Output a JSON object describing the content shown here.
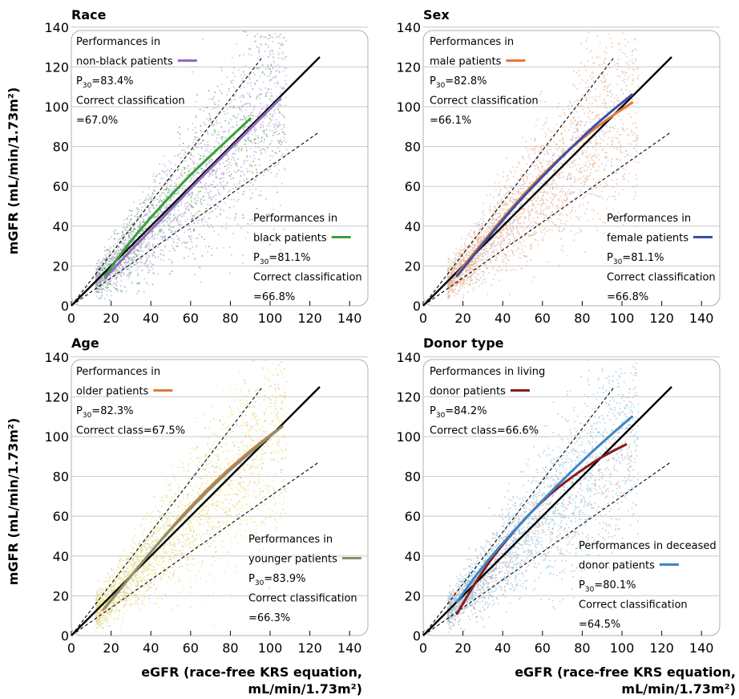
{
  "figure": {
    "ylabel": "mGFR (mL/min/1.73m²)",
    "xlabel_line1": "eGFR (race-free KRS equation,",
    "xlabel_line2": "mL/min/1.73m²)"
  },
  "chart_data": [
    {
      "type": "scatter",
      "title": "Race",
      "xlim": [
        0,
        140
      ],
      "ylim": [
        0,
        140
      ],
      "xticks": [
        0,
        20,
        40,
        60,
        80,
        100,
        120,
        140
      ],
      "yticks": [
        0,
        20,
        40,
        60,
        80,
        100,
        120,
        140
      ],
      "grid": "horizontal",
      "reference_lines": [
        "identity",
        "±30%"
      ],
      "scatter_colors": [
        "#b9a8d8",
        "#4caf50"
      ],
      "series": [
        {
          "group": "non-black patients",
          "color": "#8e6bbf",
          "x": [
            17,
            30,
            45,
            60,
            75,
            90,
            105
          ],
          "y": [
            14,
            28,
            43,
            59,
            74,
            89,
            104
          ],
          "annotation": [
            "Performances in",
            "non-black patients",
            "P30=83.4%",
            "Correct classification",
            "=67.0%"
          ],
          "p30": "83.4%",
          "correct_classification": "=67.0%"
        },
        {
          "group": "black patients",
          "color": "#3aa13a",
          "x": [
            17,
            30,
            45,
            60,
            75,
            90
          ],
          "y": [
            15,
            33,
            50,
            66,
            80,
            94
          ],
          "annotation": [
            "Performances in",
            "black patients",
            "P30=81.1%",
            "Correct classification",
            "=66.8%"
          ],
          "p30": "81.1%",
          "correct_classification": "=66.8%"
        }
      ]
    },
    {
      "type": "scatter",
      "title": "Sex",
      "xlim": [
        0,
        140
      ],
      "ylim": [
        0,
        140
      ],
      "xticks": [
        0,
        20,
        40,
        60,
        80,
        100,
        120,
        140
      ],
      "yticks": [
        0,
        20,
        40,
        60,
        80,
        100,
        120,
        140
      ],
      "grid": "horizontal",
      "reference_lines": [
        "identity",
        "±30%"
      ],
      "scatter_colors": [
        "#f2b48a",
        "#a8bde6"
      ],
      "series": [
        {
          "group": "male patients",
          "color": "#e07b3a",
          "x": [
            17,
            30,
            45,
            60,
            75,
            90,
            105
          ],
          "y": [
            16,
            32,
            50,
            66,
            80,
            92,
            102
          ],
          "annotation": [
            "Performances in",
            "male patients",
            "P30=82.8%",
            "Correct classification",
            "=66.1%"
          ],
          "p30": "82.8%",
          "correct_classification": "=66.1%"
        },
        {
          "group": "female patients",
          "color": "#3a4ea8",
          "x": [
            17,
            30,
            45,
            60,
            75,
            90,
            105
          ],
          "y": [
            15,
            31,
            49,
            65,
            80,
            94,
            106
          ],
          "annotation": [
            "Performances in",
            "female patients",
            "P30=81.1%",
            "Correct classification",
            "=66.8%"
          ],
          "p30": "81.1%",
          "correct_classification": "=66.8%"
        }
      ]
    },
    {
      "type": "scatter",
      "title": "Age",
      "xlim": [
        0,
        140
      ],
      "ylim": [
        0,
        140
      ],
      "xticks": [
        0,
        20,
        40,
        60,
        80,
        100,
        120,
        140
      ],
      "yticks": [
        0,
        20,
        40,
        60,
        80,
        100,
        120,
        140
      ],
      "grid": "horizontal",
      "reference_lines": [
        "identity",
        "±30%"
      ],
      "scatter_colors": [
        "#eee68a",
        "#c8c0b0"
      ],
      "series": [
        {
          "group": "older patients",
          "color": "#e07b3a",
          "x": [
            16,
            30,
            45,
            60,
            75,
            90,
            103
          ],
          "y": [
            13,
            30,
            48,
            65,
            80,
            93,
            103
          ],
          "annotation": [
            "Performances in",
            "older patients",
            "P30=82.3%",
            "Correct class=67.5%"
          ],
          "p30": "82.3%",
          "correct_classification": "=67.5%"
        },
        {
          "group": "younger patients",
          "color": "#8b8f6e",
          "x": [
            17,
            30,
            45,
            60,
            75,
            90,
            106
          ],
          "y": [
            14,
            30,
            48,
            64,
            79,
            92,
            105
          ],
          "annotation": [
            "Performances in",
            "younger patients",
            "P30=83.9%",
            "Correct classification",
            "=66.3%"
          ],
          "p30": "83.9%",
          "correct_classification": "=66.3%"
        }
      ]
    },
    {
      "type": "scatter",
      "title": "Donor type",
      "xlim": [
        0,
        140
      ],
      "ylim": [
        0,
        140
      ],
      "xticks": [
        0,
        20,
        40,
        60,
        80,
        100,
        120,
        140
      ],
      "yticks": [
        0,
        20,
        40,
        60,
        80,
        100,
        120,
        140
      ],
      "grid": "horizontal",
      "reference_lines": [
        "identity",
        "±30%"
      ],
      "scatter_colors": [
        "#8fc8e8",
        "#f0a080"
      ],
      "series": [
        {
          "group": "living donor patients",
          "color": "#8b1a1a",
          "x": [
            17,
            30,
            45,
            60,
            75,
            90,
            102
          ],
          "y": [
            11,
            33,
            52,
            68,
            80,
            90,
            96
          ],
          "annotation": [
            "Performances in living",
            "donor patients",
            "P30=84.2%",
            "Correct class=66.6%"
          ],
          "p30": "84.2%",
          "correct_classification": "=66.6%"
        },
        {
          "group": "deceased donor patients",
          "color": "#3a86c8",
          "x": [
            17,
            30,
            45,
            60,
            75,
            90,
            105
          ],
          "y": [
            17,
            35,
            52,
            68,
            83,
            97,
            110
          ],
          "annotation": [
            "Performances in deceased",
            "donor patients",
            "P30=80.1%",
            "Correct classification",
            "=64.5%"
          ],
          "p30": "80.1%",
          "correct_classification": "=64.5%"
        }
      ]
    }
  ]
}
